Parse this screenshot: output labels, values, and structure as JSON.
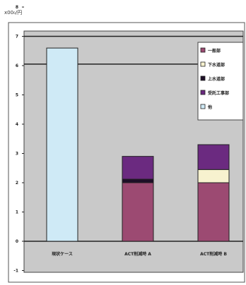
{
  "chart_data": {
    "type": "bar",
    "stacked": true,
    "unit_label": "x00₀/円",
    "categories": [
      "現状ケース",
      "ACT削減時 A",
      "ACT削減時 B"
    ],
    "yticks": [
      "-1",
      "0",
      "1",
      "2",
      "3",
      "4",
      "5",
      "6",
      "7",
      "8"
    ],
    "ylim": [
      -1,
      8
    ],
    "series": [
      {
        "name": "一般部",
        "color": "#9c4a72",
        "values": [
          0,
          2.0,
          2.0
        ]
      },
      {
        "name": "下水道部",
        "color": "#f7f2cf",
        "values": [
          0,
          0,
          0.45
        ]
      },
      {
        "name": "上水道部",
        "color": "#1e0f28",
        "values": [
          0,
          0.12,
          0
        ]
      },
      {
        "name": "受託工事部",
        "color": "#6b2a80",
        "values": [
          0,
          0.78,
          0.85
        ]
      },
      {
        "name": "他",
        "color": "#cfeaf6",
        "values": [
          6.6,
          0,
          0
        ]
      }
    ],
    "reference_lines": [
      7.0,
      6.05
    ],
    "grid": false,
    "legend_position": "top-right"
  }
}
